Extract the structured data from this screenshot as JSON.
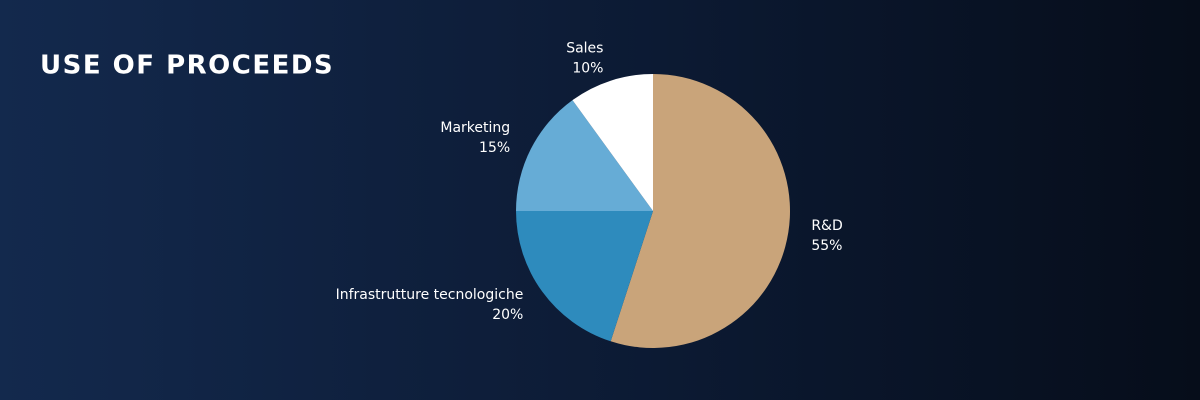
{
  "chart_data": {
    "type": "pie",
    "title": "USE OF PROCEEDS",
    "categories": [
      "R&D",
      "Infrastrutture tecnologiche",
      "Marketing",
      "Sales"
    ],
    "values": [
      55,
      20,
      15,
      10
    ],
    "value_labels": [
      "55%",
      "20%",
      "15%",
      "10%"
    ],
    "colors": [
      "#c9a47a",
      "#2e8bbd",
      "#66acd6",
      "#ffffff"
    ]
  }
}
